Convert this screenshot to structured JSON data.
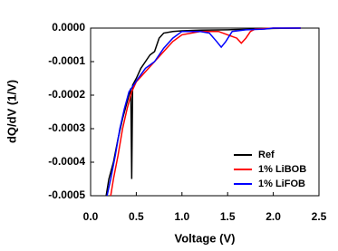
{
  "chart_data": {
    "type": "line",
    "x_label": "Voltage (V)",
    "y_label": "dQ/dV (1/V)",
    "xlim": [
      0,
      2.5
    ],
    "ylim": [
      -0.0005,
      0
    ],
    "xticks": [
      {
        "value": 0,
        "label": "0.0"
      },
      0.5,
      {
        "value": 1,
        "label": "1.0"
      },
      1.5,
      {
        "value": 2,
        "label": "2.0"
      },
      2.5
    ],
    "yticks": [
      {
        "value": 0,
        "label": "0.0000"
      },
      -0.0001,
      -0.0002,
      -0.0003,
      -0.0004,
      -0.0005
    ],
    "legend": "lower right",
    "series": [
      {
        "name": "Ref",
        "color": "#000000",
        "x": [
          0.17,
          0.2,
          0.25,
          0.3,
          0.35,
          0.4,
          0.44,
          0.45,
          0.46,
          0.5,
          0.55,
          0.6,
          0.65,
          0.7,
          0.75,
          0.8,
          0.9,
          1.0,
          1.2,
          1.5,
          1.8,
          2.0,
          2.3
        ],
        "values": [
          -0.0005,
          -0.00045,
          -0.0004,
          -0.00033,
          -0.00027,
          -0.00022,
          -0.00018,
          -0.00045,
          -0.00017,
          -0.00015,
          -0.00012,
          -0.0001,
          -8e-05,
          -7e-05,
          -3e-05,
          -1.5e-05,
          -1e-05,
          -8e-06,
          -6e-06,
          -5e-06,
          -3e-06,
          -1e-06,
          0
        ]
      },
      {
        "name": "1% LiBOB",
        "color": "#ff0000",
        "x": [
          0.22,
          0.25,
          0.3,
          0.35,
          0.4,
          0.45,
          0.5,
          0.6,
          0.7,
          0.8,
          0.9,
          1.0,
          1.2,
          1.4,
          1.5,
          1.6,
          1.65,
          1.7,
          1.75,
          1.8,
          2.0,
          2.3
        ],
        "values": [
          -0.0005,
          -0.00045,
          -0.00038,
          -0.0003,
          -0.00024,
          -0.00019,
          -0.00016,
          -0.00013,
          -0.0001,
          -7e-05,
          -4e-05,
          -2e-05,
          -1e-05,
          -1e-05,
          -2e-05,
          -3e-05,
          -4.5e-05,
          -3e-05,
          -1e-05,
          -3e-06,
          0,
          0
        ]
      },
      {
        "name": "1% LiFOB",
        "color": "#0000ff",
        "x": [
          0.18,
          0.22,
          0.27,
          0.32,
          0.37,
          0.42,
          0.47,
          0.52,
          0.6,
          0.7,
          0.8,
          0.9,
          1.0,
          1.2,
          1.3,
          1.38,
          1.43,
          1.48,
          1.55,
          1.7,
          1.9,
          2.0,
          2.3
        ],
        "values": [
          -0.0005,
          -0.00045,
          -0.00038,
          -0.0003,
          -0.00024,
          -0.00019,
          -0.00017,
          -0.00015,
          -0.00012,
          -0.0001,
          -6e-05,
          -3e-05,
          -1e-05,
          -1e-05,
          -1.5e-05,
          -4e-05,
          -5.7e-05,
          -4e-05,
          -1e-05,
          -5e-06,
          -3e-06,
          0,
          0
        ]
      }
    ]
  }
}
